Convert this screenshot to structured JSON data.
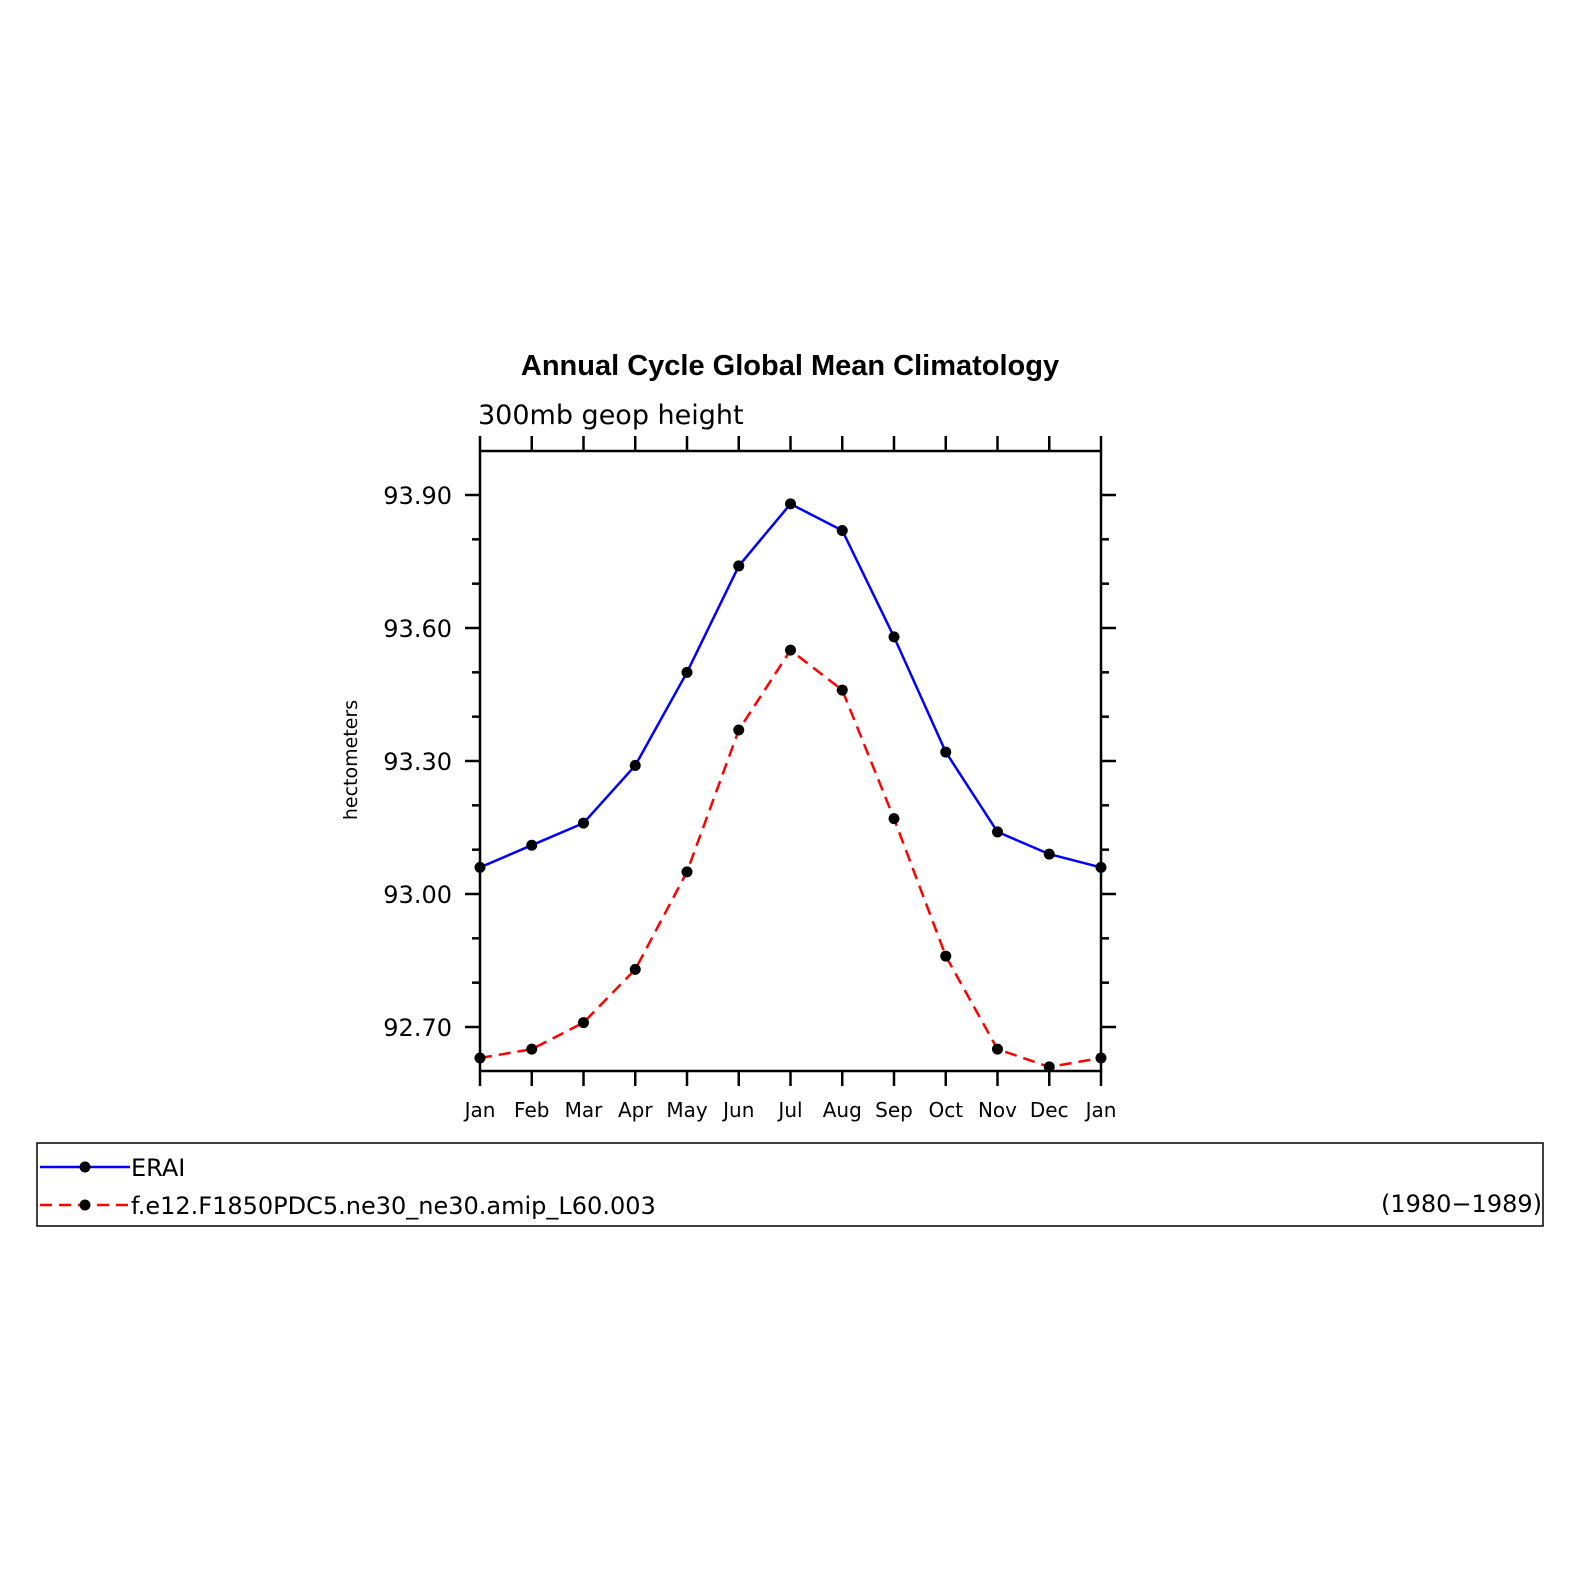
{
  "chart_data": {
    "type": "line",
    "title": "Annual Cycle Global Mean Climatology",
    "subtitle": "300mb geop height",
    "ylabel": "hectometers",
    "xlabel": "",
    "categories": [
      "Jan",
      "Feb",
      "Mar",
      "Apr",
      "May",
      "Jun",
      "Jul",
      "Aug",
      "Sep",
      "Oct",
      "Nov",
      "Dec",
      "Jan"
    ],
    "ylim": [
      92.6,
      94.0
    ],
    "yticks": [
      "93.90",
      "93.60",
      "93.30",
      "93.00",
      "92.70"
    ],
    "ytick_values": [
      93.9,
      93.6,
      93.3,
      93.0,
      92.7
    ],
    "grid": false,
    "series": [
      {
        "name": "ERAI",
        "color": "#0000ff",
        "dash": "solid",
        "values": [
          93.06,
          93.11,
          93.16,
          93.29,
          93.5,
          93.74,
          93.88,
          93.82,
          93.58,
          93.32,
          93.14,
          93.09,
          93.06
        ]
      },
      {
        "name": "f.e12.F1850PDC5.ne30_ne30.amip_L60.003",
        "color": "#ff0000",
        "dash": "dashed",
        "values": [
          92.63,
          92.65,
          92.71,
          92.83,
          93.05,
          93.37,
          93.55,
          93.46,
          93.17,
          92.86,
          92.65,
          92.61,
          92.63
        ]
      }
    ],
    "legend": {
      "placement": "bottom",
      "note": "(1980−1989)"
    }
  }
}
